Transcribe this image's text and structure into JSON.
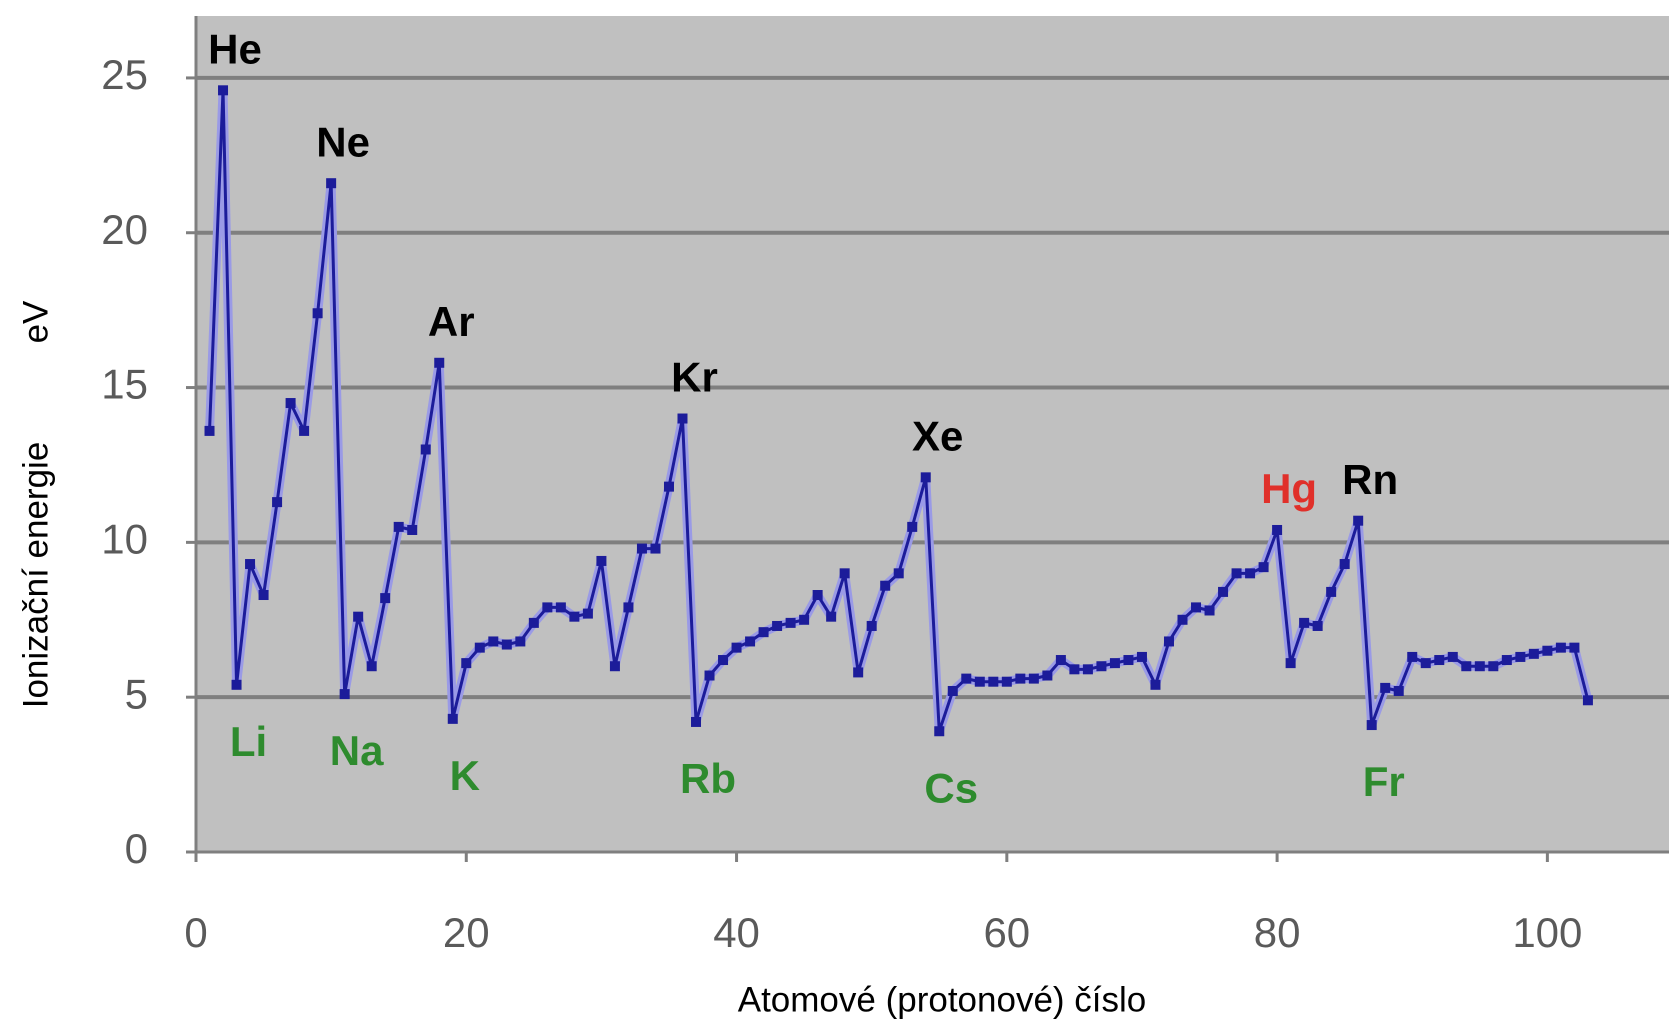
{
  "chart_data": {
    "type": "line",
    "xlabel": "Atomové (protonové) číslo",
    "ylabel": "Ionizační energie",
    "y_unit": "eV",
    "xlim": [
      0,
      109
    ],
    "ylim": [
      0,
      27
    ],
    "xticks": [
      0,
      20,
      40,
      60,
      80,
      100
    ],
    "yticks": [
      0,
      5,
      10,
      15,
      20,
      25
    ],
    "grid": true,
    "background": "#c0c0c0",
    "grid_color": "#7f7f7f",
    "series": [
      {
        "color": "#1c1c9a",
        "x": [
          1,
          2,
          3,
          4,
          5,
          6,
          7,
          8,
          9,
          10,
          11,
          12,
          13,
          14,
          15,
          16,
          17,
          18,
          19,
          20,
          21,
          22,
          23,
          24,
          25,
          26,
          27,
          28,
          29,
          30,
          31,
          32,
          33,
          34,
          35,
          36,
          37,
          38,
          39,
          40,
          41,
          42,
          43,
          44,
          45,
          46,
          47,
          48,
          49,
          50,
          51,
          52,
          53,
          54,
          55,
          56,
          57,
          58,
          59,
          60,
          61,
          62,
          63,
          64,
          65,
          66,
          67,
          68,
          69,
          70,
          71,
          72,
          73,
          74,
          75,
          76,
          77,
          78,
          79,
          80,
          81,
          82,
          83,
          84,
          85,
          86,
          87,
          88,
          89,
          90,
          91,
          92,
          93,
          94,
          95,
          96,
          97,
          98,
          99,
          100,
          101,
          102,
          103
        ],
        "values": [
          13.6,
          24.6,
          5.4,
          9.3,
          8.3,
          11.3,
          14.5,
          13.6,
          17.4,
          21.6,
          5.1,
          7.6,
          6.0,
          8.2,
          10.5,
          10.4,
          13.0,
          15.8,
          4.3,
          6.1,
          6.6,
          6.8,
          6.7,
          6.8,
          7.4,
          7.9,
          7.9,
          7.6,
          7.7,
          9.4,
          6.0,
          7.9,
          9.8,
          9.8,
          11.8,
          14.0,
          4.2,
          5.7,
          6.2,
          6.6,
          6.8,
          7.1,
          7.3,
          7.4,
          7.5,
          8.3,
          7.6,
          9.0,
          5.8,
          7.3,
          8.6,
          9.0,
          10.5,
          12.1,
          3.9,
          5.2,
          5.6,
          5.5,
          5.5,
          5.5,
          5.6,
          5.6,
          5.7,
          6.2,
          5.9,
          5.9,
          6.0,
          6.1,
          6.2,
          6.3,
          5.4,
          6.8,
          7.5,
          7.9,
          7.8,
          8.4,
          9.0,
          9.0,
          9.2,
          10.4,
          6.1,
          7.4,
          7.3,
          8.4,
          9.3,
          10.7,
          4.1,
          5.3,
          5.2,
          6.3,
          6.1,
          6.2,
          6.3,
          6.0,
          6.0,
          6.0,
          6.2,
          6.3,
          6.4,
          6.5,
          6.6,
          6.6,
          4.9
        ]
      }
    ],
    "annotations": [
      {
        "text": "He",
        "x": 2,
        "color": "#000000",
        "position": "above"
      },
      {
        "text": "Ne",
        "x": 10,
        "color": "#000000",
        "position": "above"
      },
      {
        "text": "Ar",
        "x": 18,
        "color": "#000000",
        "position": "above"
      },
      {
        "text": "Kr",
        "x": 36,
        "color": "#000000",
        "position": "above"
      },
      {
        "text": "Xe",
        "x": 54,
        "color": "#000000",
        "position": "above"
      },
      {
        "text": "Hg",
        "x": 80,
        "color": "#e0302a",
        "position": "above"
      },
      {
        "text": "Rn",
        "x": 86,
        "color": "#000000",
        "position": "above"
      },
      {
        "text": "Li",
        "x": 3,
        "color": "#2e8b2e",
        "position": "below"
      },
      {
        "text": "Na",
        "x": 11,
        "color": "#2e8b2e",
        "position": "below"
      },
      {
        "text": "K",
        "x": 19,
        "color": "#2e8b2e",
        "position": "below"
      },
      {
        "text": "Rb",
        "x": 37,
        "color": "#2e8b2e",
        "position": "below"
      },
      {
        "text": "Cs",
        "x": 55,
        "color": "#2e8b2e",
        "position": "below"
      },
      {
        "text": "Fr",
        "x": 87,
        "color": "#2e8b2e",
        "position": "below"
      }
    ]
  }
}
